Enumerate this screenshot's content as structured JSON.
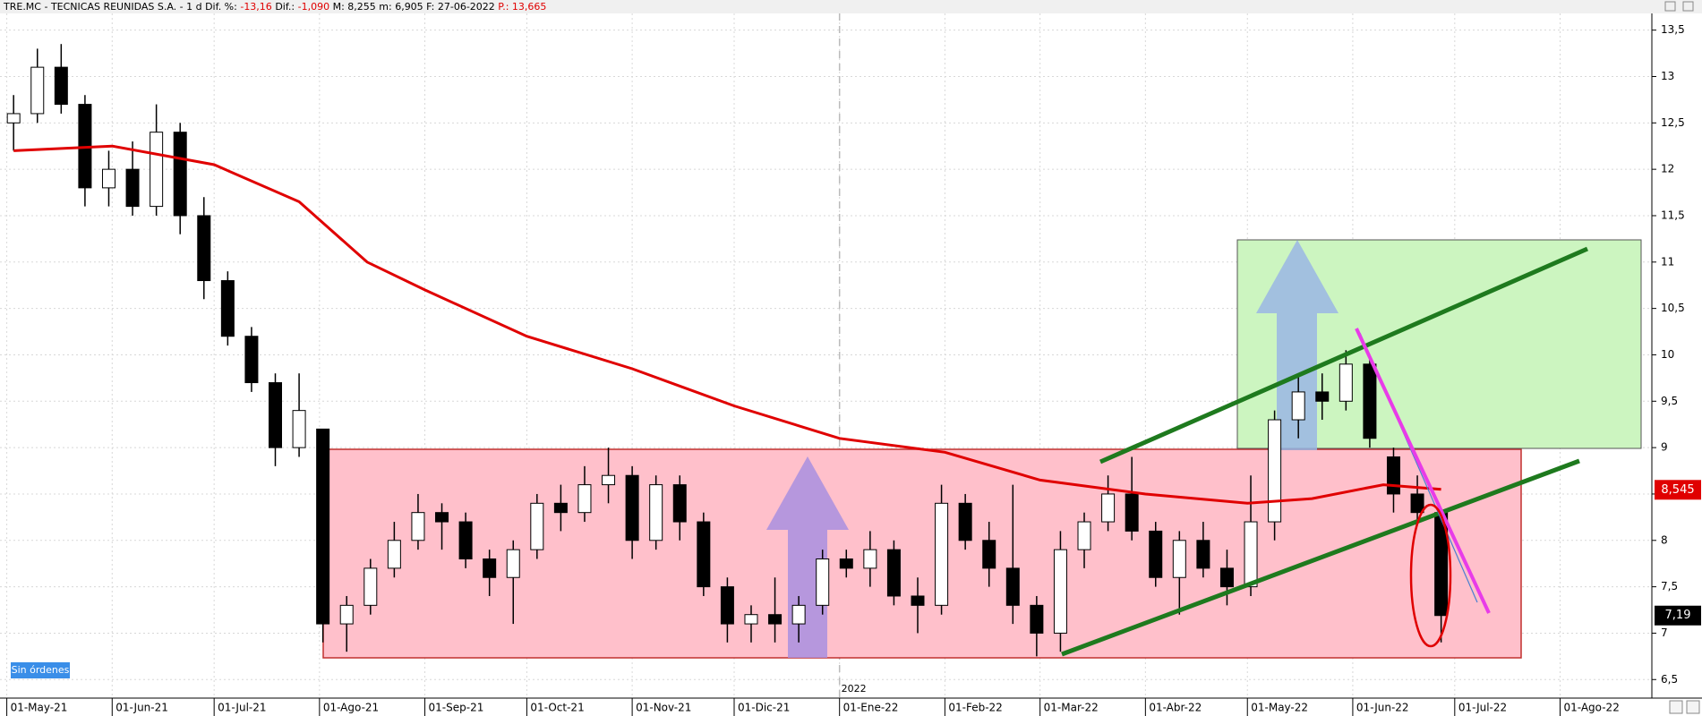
{
  "chart_data": {
    "type": "candlestick",
    "title": [
      {
        "text": "TRE.MC - TECNICAS REUNIDAS S.A. -  1 d  Dif. %:"
      },
      {
        "text": "-13,16",
        "color": "#e00000"
      },
      {
        "text": "Dif.:"
      },
      {
        "text": "-1,090",
        "color": "#e00000"
      },
      {
        "text": "M: 8,255  m: 6,905  F: 27-06-2022"
      },
      {
        "text": "P.: 13,665",
        "color": "#e00000"
      }
    ],
    "x": [
      "2021-05-03",
      "2021-05-10",
      "2021-05-17",
      "2021-05-24",
      "2021-05-31",
      "2021-06-07",
      "2021-06-14",
      "2021-06-21",
      "2021-06-28",
      "2021-07-05",
      "2021-07-12",
      "2021-07-19",
      "2021-07-26",
      "2021-08-02",
      "2021-08-09",
      "2021-08-16",
      "2021-08-23",
      "2021-08-30",
      "2021-09-06",
      "2021-09-13",
      "2021-09-20",
      "2021-09-27",
      "2021-10-04",
      "2021-10-11",
      "2021-10-18",
      "2021-10-25",
      "2021-11-01",
      "2021-11-08",
      "2021-11-15",
      "2021-11-22",
      "2021-11-29",
      "2021-12-06",
      "2021-12-13",
      "2021-12-20",
      "2021-12-27",
      "2022-01-03",
      "2022-01-10",
      "2022-01-17",
      "2022-01-24",
      "2022-01-31",
      "2022-02-07",
      "2022-02-14",
      "2022-02-21",
      "2022-02-28",
      "2022-03-07",
      "2022-03-14",
      "2022-03-21",
      "2022-03-28",
      "2022-04-04",
      "2022-04-11",
      "2022-04-18",
      "2022-04-25",
      "2022-05-02",
      "2022-05-09",
      "2022-05-16",
      "2022-05-23",
      "2022-05-30",
      "2022-06-06",
      "2022-06-13",
      "2022-06-20",
      "2022-06-27"
    ],
    "open": [
      12.5,
      12.6,
      13.1,
      12.7,
      11.8,
      12.0,
      11.6,
      12.4,
      11.5,
      10.8,
      10.2,
      9.7,
      9.0,
      9.2,
      7.1,
      7.3,
      7.7,
      8.0,
      8.3,
      8.2,
      7.8,
      7.6,
      7.9,
      8.4,
      8.3,
      8.6,
      8.7,
      8.0,
      8.6,
      8.2,
      7.5,
      7.1,
      7.2,
      7.1,
      7.3,
      7.8,
      7.7,
      7.9,
      7.4,
      7.3,
      8.4,
      8.0,
      7.7,
      7.3,
      7.0,
      7.9,
      8.2,
      8.5,
      8.1,
      7.6,
      8.0,
      7.7,
      7.5,
      8.2,
      9.3,
      9.6,
      9.5,
      9.9,
      8.9,
      8.5,
      8.3
    ],
    "high": [
      12.8,
      13.3,
      13.35,
      12.8,
      12.2,
      12.3,
      12.7,
      12.5,
      11.7,
      10.9,
      10.3,
      9.8,
      9.8,
      9.2,
      7.4,
      7.8,
      8.2,
      8.5,
      8.4,
      8.3,
      7.9,
      8.0,
      8.5,
      8.6,
      8.8,
      9.0,
      8.8,
      8.7,
      8.7,
      8.3,
      7.6,
      7.3,
      7.6,
      7.4,
      7.9,
      7.9,
      8.1,
      8.0,
      7.6,
      8.6,
      8.5,
      8.2,
      8.6,
      7.4,
      8.1,
      8.3,
      8.7,
      8.9,
      8.2,
      8.1,
      8.2,
      7.9,
      8.7,
      9.4,
      9.8,
      9.8,
      10.05,
      9.95,
      9.0,
      8.7,
      8.3
    ],
    "low": [
      12.2,
      12.5,
      12.6,
      11.6,
      11.6,
      11.5,
      11.5,
      11.3,
      10.6,
      10.1,
      9.6,
      8.8,
      8.9,
      6.9,
      6.8,
      7.2,
      7.6,
      7.9,
      7.9,
      7.7,
      7.4,
      7.1,
      7.8,
      8.1,
      8.2,
      8.4,
      7.8,
      7.9,
      8.0,
      7.4,
      6.9,
      6.9,
      6.9,
      6.9,
      7.2,
      7.6,
      7.5,
      7.3,
      7.0,
      7.2,
      7.9,
      7.5,
      7.1,
      6.75,
      6.8,
      7.7,
      8.1,
      8.0,
      7.5,
      7.2,
      7.6,
      7.3,
      7.4,
      8.0,
      9.1,
      9.3,
      9.4,
      9.0,
      8.3,
      8.2,
      6.9
    ],
    "close": [
      12.6,
      13.1,
      12.7,
      11.8,
      12.0,
      11.6,
      12.4,
      11.5,
      10.8,
      10.2,
      9.7,
      9.0,
      9.4,
      7.1,
      7.3,
      7.7,
      8.0,
      8.3,
      8.2,
      7.8,
      7.6,
      7.9,
      8.4,
      8.3,
      8.6,
      8.7,
      8.0,
      8.6,
      8.2,
      7.5,
      7.1,
      7.2,
      7.1,
      7.3,
      7.8,
      7.7,
      7.9,
      7.4,
      7.3,
      8.4,
      8.0,
      7.7,
      7.3,
      7.0,
      7.9,
      8.2,
      8.5,
      8.1,
      7.6,
      8.0,
      7.7,
      7.5,
      8.2,
      9.3,
      9.6,
      9.5,
      9.9,
      9.1,
      8.5,
      8.3,
      7.19
    ],
    "moving_average": {
      "color": "#e00000",
      "x": [
        "2021-05-03",
        "2021-06-01",
        "2021-07-01",
        "2021-07-26",
        "2021-08-15",
        "2021-09-01",
        "2021-10-01",
        "2021-11-01",
        "2021-12-01",
        "2022-01-01",
        "2022-02-01",
        "2022-03-01",
        "2022-04-01",
        "2022-05-01",
        "2022-05-20",
        "2022-06-10",
        "2022-06-27"
      ],
      "values": [
        12.2,
        12.25,
        12.05,
        11.65,
        11.0,
        10.7,
        10.2,
        9.85,
        9.45,
        9.1,
        8.95,
        8.65,
        8.5,
        8.4,
        8.45,
        8.6,
        8.55
      ]
    },
    "ma_last": {
      "value": 8.545,
      "label": "8,545"
    },
    "last_price": {
      "value": 7.19,
      "label": "7,19"
    },
    "xlim": [
      "2021-04-29",
      "2022-08-28"
    ],
    "xticks": [
      {
        "value": "2021-05-01",
        "label": "01-May-21"
      },
      {
        "value": "2021-06-01",
        "label": "01-Jun-21"
      },
      {
        "value": "2021-07-01",
        "label": "01-Jul-21"
      },
      {
        "value": "2021-08-01",
        "label": "01-Ago-21"
      },
      {
        "value": "2021-09-01",
        "label": "01-Sep-21"
      },
      {
        "value": "2021-10-01",
        "label": "01-Oct-21"
      },
      {
        "value": "2021-11-01",
        "label": "01-Nov-21"
      },
      {
        "value": "2021-12-01",
        "label": "01-Dic-21"
      },
      {
        "value": "2022-01-01",
        "label": "01-Ene-22"
      },
      {
        "value": "2022-02-01",
        "label": "01-Feb-22"
      },
      {
        "value": "2022-03-01",
        "label": "01-Mar-22"
      },
      {
        "value": "2022-04-01",
        "label": "01-Abr-22"
      },
      {
        "value": "2022-05-01",
        "label": "01-May-22"
      },
      {
        "value": "2022-06-01",
        "label": "01-Jun-22"
      },
      {
        "value": "2022-07-01",
        "label": "01-Jul-22"
      },
      {
        "value": "2022-08-01",
        "label": "01-Ago-22"
      }
    ],
    "year_marker": {
      "value": "2022-01-01",
      "label": "2022"
    },
    "ylim": [
      6.3,
      13.68
    ],
    "yticks": [
      {
        "value": 6.5,
        "label": "6,5"
      },
      7,
      {
        "value": 7.5,
        "label": "7,5"
      },
      8,
      {
        "value": 8.5,
        "label": "8,5"
      },
      9,
      {
        "value": 9.5,
        "label": "9,5"
      },
      10,
      {
        "value": 10.5,
        "label": "10,5"
      },
      11,
      {
        "value": 11.5,
        "label": "11,5"
      },
      12,
      {
        "value": 12.5,
        "label": "12,5"
      },
      13,
      {
        "value": 13.5,
        "label": "13,5"
      }
    ],
    "grid": true,
    "up_color": "#ffffff",
    "down_color": "#000000",
    "orders_label": "Sin órdenes"
  }
}
